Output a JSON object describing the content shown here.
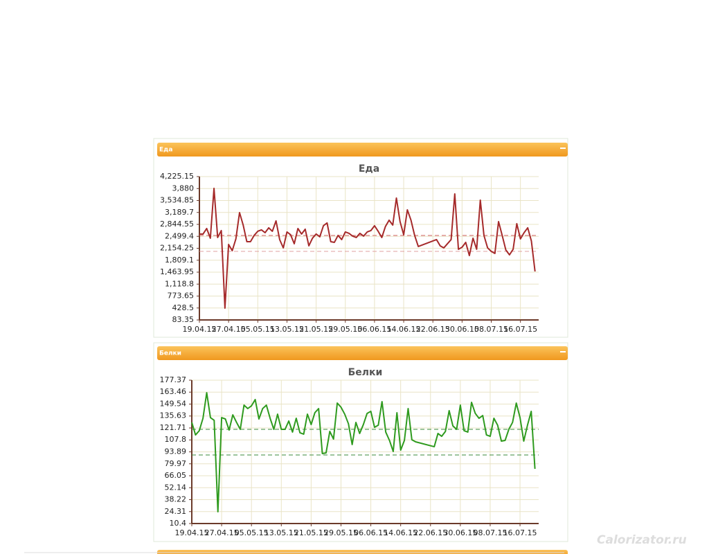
{
  "panel_headers": [
    "Еда",
    "Белки"
  ],
  "watermark": "Calorizator.ru",
  "chart_data": [
    {
      "type": "line",
      "title": "Еда",
      "color": "#a52a2a",
      "x": [
        "19.04.15",
        "20.04.15",
        "21.04.15",
        "22.04.15",
        "23.04.15",
        "24.04.15",
        "25.04.15",
        "26.04.15",
        "27.04.15",
        "28.04.15",
        "29.04.15",
        "30.04.15",
        "01.05.15",
        "02.05.15",
        "03.05.15",
        "04.05.15",
        "05.05.15",
        "06.05.15",
        "07.05.15",
        "08.05.15",
        "09.05.15",
        "10.05.15",
        "11.05.15",
        "12.05.15",
        "13.05.15",
        "14.05.15",
        "15.05.15",
        "16.05.15",
        "17.05.15",
        "18.05.15",
        "19.05.15",
        "20.05.15",
        "21.05.15",
        "22.05.15",
        "23.05.15",
        "24.05.15",
        "25.05.15",
        "26.05.15",
        "27.05.15",
        "28.05.15",
        "29.05.15",
        "30.05.15",
        "31.05.15",
        "01.06.15",
        "02.06.15",
        "03.06.15",
        "04.06.15",
        "05.06.15",
        "06.06.15",
        "07.06.15",
        "08.06.15",
        "09.06.15",
        "10.06.15",
        "11.06.15",
        "12.06.15",
        "13.06.15",
        "14.06.15",
        "15.06.15",
        "16.06.15",
        "17.06.15",
        "18.06.15",
        "23.06.15",
        "24.06.15",
        "25.06.15",
        "26.06.15",
        "27.06.15",
        "28.06.15",
        "29.06.15",
        "30.06.15",
        "01.07.15",
        "02.07.15",
        "03.07.15",
        "04.07.15",
        "05.07.15",
        "06.07.15",
        "07.07.15",
        "08.07.15",
        "09.07.15",
        "10.07.15",
        "11.07.15",
        "12.07.15",
        "13.07.15",
        "14.07.15",
        "15.07.15",
        "16.07.15",
        "17.07.15",
        "18.07.15",
        "19.07.15",
        "20.07.15"
      ],
      "values": [
        2565,
        2565,
        2725,
        2445,
        3885,
        2465,
        2665,
        424,
        2264,
        2084,
        2425,
        3185,
        2825,
        2345,
        2345,
        2525,
        2645,
        2685,
        2605,
        2745,
        2645,
        2945,
        2405,
        2165,
        2625,
        2545,
        2285,
        2725,
        2565,
        2705,
        2225,
        2445,
        2565,
        2485,
        2805,
        2885,
        2345,
        2325,
        2525,
        2405,
        2625,
        2585,
        2505,
        2465,
        2585,
        2505,
        2625,
        2665,
        2805,
        2645,
        2465,
        2785,
        2965,
        2825,
        3605,
        2925,
        2545,
        3265,
        2965,
        2525,
        2205,
        2405,
        2225,
        2165,
        2285,
        2405,
        3725,
        2125,
        2185,
        2325,
        1944,
        2445,
        2125,
        3545,
        2525,
        2165,
        2064,
        2004,
        2925,
        2525,
        2104,
        1964,
        2125,
        2865,
        2425,
        2605,
        2745,
        2365,
        1484
      ],
      "reference_lines": [
        {
          "value": 2525,
          "color": "#d06060"
        },
        {
          "value": 2064,
          "color": "#e0a0a0"
        }
      ],
      "xlim": [
        "19.04.15",
        "21.07.15"
      ],
      "xticks": [
        "19.04.15",
        "27.04.15",
        "05.05.15",
        "13.05.15",
        "21.05.15",
        "29.05.15",
        "06.06.15",
        "14.06.15",
        "22.06.15",
        "30.06.15",
        "08.07.15",
        "16.07.15"
      ],
      "ylim": [
        83.35,
        4225.15
      ],
      "yticks": [
        83.35,
        428.5,
        773.65,
        {
          "value": 1118.8,
          "label": "1,118.8"
        },
        {
          "value": 1463.95,
          "label": "1,463.95"
        },
        {
          "value": 1809.1,
          "label": "1,809.1"
        },
        {
          "value": 2154.25,
          "label": "2,154.25"
        },
        {
          "value": 2499.4,
          "label": "2,499.4"
        },
        {
          "value": 2844.55,
          "label": "2,844.55"
        },
        {
          "value": 3189.7,
          "label": "3,189.7"
        },
        {
          "value": 3534.85,
          "label": "3,534.85"
        },
        {
          "value": 3880,
          "label": "3,880"
        },
        {
          "value": 4225.15,
          "label": "4,225.15"
        }
      ],
      "grid": true
    },
    {
      "type": "line",
      "title": "Белки",
      "color": "#2e9a1e",
      "x": [
        "19.04.15",
        "20.04.15",
        "21.04.15",
        "22.04.15",
        "23.04.15",
        "24.04.15",
        "25.04.15",
        "26.04.15",
        "27.04.15",
        "28.04.15",
        "29.04.15",
        "30.04.15",
        "01.05.15",
        "02.05.15",
        "03.05.15",
        "04.05.15",
        "05.05.15",
        "06.05.15",
        "07.05.15",
        "08.05.15",
        "09.05.15",
        "10.05.15",
        "11.05.15",
        "12.05.15",
        "13.05.15",
        "14.05.15",
        "15.05.15",
        "16.05.15",
        "17.05.15",
        "18.05.15",
        "19.05.15",
        "20.05.15",
        "21.05.15",
        "22.05.15",
        "23.05.15",
        "24.05.15",
        "25.05.15",
        "26.05.15",
        "27.05.15",
        "28.05.15",
        "29.05.15",
        "30.05.15",
        "31.05.15",
        "01.06.15",
        "02.06.15",
        "03.06.15",
        "04.06.15",
        "05.06.15",
        "06.06.15",
        "07.06.15",
        "08.06.15",
        "09.06.15",
        "10.06.15",
        "11.06.15",
        "12.06.15",
        "13.06.15",
        "14.06.15",
        "15.06.15",
        "16.06.15",
        "17.06.15",
        "18.06.15",
        "23.06.15",
        "24.06.15",
        "25.06.15",
        "26.06.15",
        "27.06.15",
        "28.06.15",
        "29.06.15",
        "30.06.15",
        "01.07.15",
        "02.07.15",
        "03.07.15",
        "04.07.15",
        "05.07.15",
        "06.07.15",
        "07.07.15",
        "08.07.15",
        "09.07.15",
        "10.07.15",
        "11.07.15",
        "12.07.15",
        "13.07.15",
        "14.07.15",
        "15.07.15",
        "16.07.15",
        "17.07.15",
        "18.07.15",
        "19.07.15",
        "20.07.15"
      ],
      "values": [
        128.2,
        113.6,
        118.5,
        133.0,
        162.8,
        133.8,
        130.6,
        24.1,
        133.8,
        132.2,
        119.3,
        137.0,
        128.2,
        120.1,
        148.3,
        144.3,
        147.5,
        154.8,
        132.2,
        144.3,
        148.3,
        133.0,
        120.1,
        137.8,
        120.1,
        120.1,
        129.8,
        116.9,
        133.0,
        116.1,
        114.5,
        137.8,
        125.7,
        139.5,
        144.3,
        91.9,
        92.7,
        117.7,
        108.8,
        150.7,
        145.9,
        137.8,
        126.6,
        102.4,
        128.2,
        115.3,
        125.7,
        138.7,
        141.1,
        122.5,
        124.9,
        152.4,
        116.9,
        107.2,
        94.3,
        139.5,
        95.9,
        107.2,
        144.3,
        108.0,
        105.6,
        99.9,
        115.3,
        112.0,
        117.7,
        141.9,
        124.1,
        120.1,
        148.3,
        118.5,
        116.9,
        151.6,
        138.7,
        133.0,
        136.2,
        113.6,
        112.0,
        133.0,
        124.9,
        106.4,
        107.2,
        120.1,
        128.2,
        150.7,
        133.8,
        106.4,
        124.9,
        141.1,
        74.1
      ],
      "reference_lines": [
        {
          "value": 120.1,
          "color": "#3a8a3a"
        },
        {
          "value": 90.3,
          "color": "#3a8a3a"
        }
      ],
      "xlim": [
        "19.04.15",
        "21.07.15"
      ],
      "xticks": [
        "19.04.15",
        "27.04.15",
        "05.05.15",
        "13.05.15",
        "21.05.15",
        "29.05.15",
        "06.06.15",
        "14.06.15",
        "22.06.15",
        "30.06.15",
        "08.07.15",
        "16.07.15"
      ],
      "ylim": [
        10.4,
        177.37
      ],
      "yticks": [
        10.4,
        24.31,
        38.22,
        52.14,
        66.05,
        79.97,
        93.89,
        107.8,
        121.71,
        135.63,
        149.54,
        163.46,
        177.37
      ],
      "grid": true
    }
  ]
}
